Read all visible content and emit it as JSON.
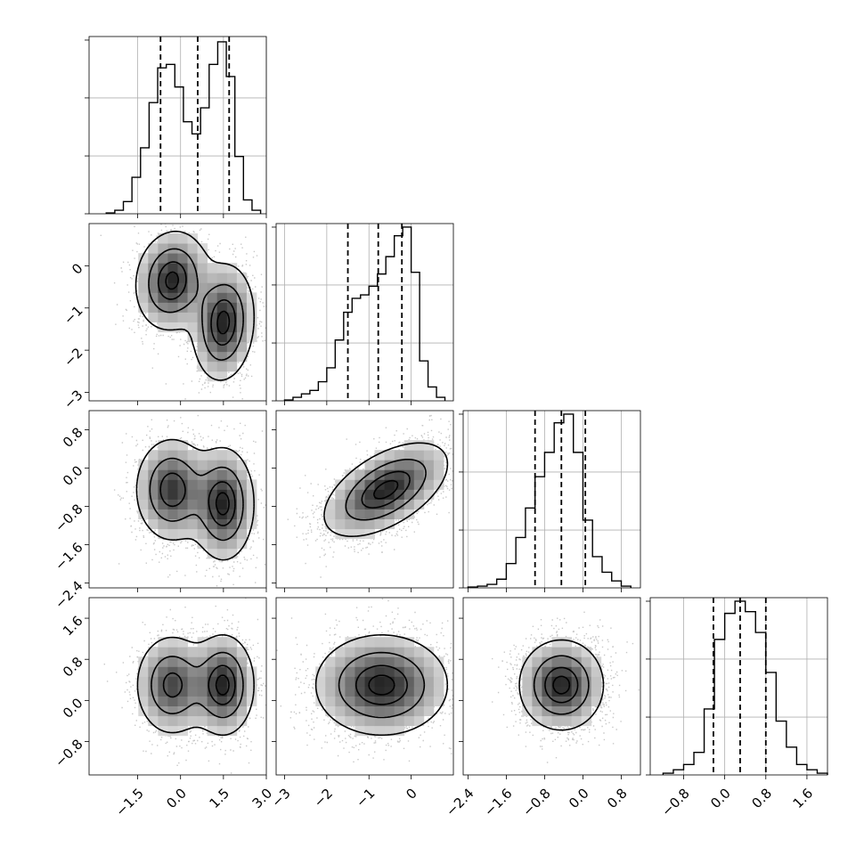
{
  "chart_data": {
    "type": "corner",
    "parameters": [
      "",
      "",
      "",
      ""
    ],
    "ranges": [
      [
        -3.2,
        3.0
      ],
      [
        -3.2,
        1.0
      ],
      [
        -2.5,
        1.2
      ],
      [
        -1.45,
        2.0
      ]
    ],
    "ticks": [
      {
        "values": [
          -1.5,
          0.0,
          1.5,
          3.0
        ],
        "labels": [
          "−1.5",
          "0.0",
          "1.5",
          "3.0"
        ]
      },
      {
        "values": [
          -3,
          -2,
          -1,
          0
        ],
        "labels": [
          "−3",
          "−2",
          "−1",
          "0"
        ]
      },
      {
        "values": [
          -2.4,
          -1.6,
          -0.8,
          0.0,
          0.8
        ],
        "labels": [
          "−2.4",
          "−1.6",
          "−0.8",
          "0.0",
          "0.8"
        ]
      },
      {
        "values": [
          -0.8,
          0.0,
          0.8,
          1.6
        ],
        "labels": [
          "−0.8",
          "0.0",
          "0.8",
          "1.6"
        ]
      }
    ],
    "quantiles": [
      [
        -0.7,
        0.6,
        1.7
      ],
      [
        -1.5,
        -0.78,
        -0.22
      ],
      [
        -1.0,
        -0.45,
        0.05
      ],
      [
        -0.22,
        0.3,
        0.8
      ]
    ],
    "histograms": [
      {
        "bin_edges": [
          -2.6,
          -2.3,
          -2.0,
          -1.7,
          -1.4,
          -1.1,
          -0.8,
          -0.5,
          -0.2,
          0.1,
          0.4,
          0.7,
          1.0,
          1.3,
          1.6,
          1.9,
          2.2,
          2.5,
          2.8
        ],
        "counts": [
          0.005,
          0.02,
          0.07,
          0.21,
          0.38,
          0.64,
          0.84,
          0.86,
          0.73,
          0.53,
          0.46,
          0.61,
          0.86,
          0.99,
          0.79,
          0.33,
          0.08,
          0.02
        ]
      },
      {
        "bin_edges": [
          -3.0,
          -2.8,
          -2.6,
          -2.4,
          -2.2,
          -2.0,
          -1.8,
          -1.6,
          -1.4,
          -1.2,
          -1.0,
          -0.8,
          -0.6,
          -0.4,
          -0.2,
          0.0,
          0.2,
          0.4,
          0.6,
          0.8
        ],
        "counts": [
          0.005,
          0.02,
          0.04,
          0.06,
          0.11,
          0.19,
          0.35,
          0.51,
          0.59,
          0.61,
          0.66,
          0.73,
          0.83,
          0.95,
          1.0,
          0.74,
          0.23,
          0.08,
          0.02
        ]
      },
      {
        "bin_edges": [
          -2.4,
          -2.2,
          -2.0,
          -1.8,
          -1.6,
          -1.4,
          -1.2,
          -1.0,
          -0.8,
          -0.6,
          -0.4,
          -0.2,
          0.0,
          0.2,
          0.4,
          0.6,
          0.8,
          1.0
        ],
        "counts": [
          0.005,
          0.01,
          0.02,
          0.05,
          0.14,
          0.29,
          0.46,
          0.64,
          0.78,
          0.95,
          1.0,
          0.78,
          0.39,
          0.18,
          0.09,
          0.04,
          0.01
        ]
      },
      {
        "bin_edges": [
          -1.2,
          -1.0,
          -0.8,
          -0.6,
          -0.4,
          -0.2,
          0.0,
          0.2,
          0.4,
          0.6,
          0.8,
          1.0,
          1.2,
          1.4,
          1.6,
          1.8,
          2.0
        ],
        "counts": [
          0.01,
          0.03,
          0.06,
          0.13,
          0.38,
          0.78,
          0.93,
          1.0,
          0.94,
          0.82,
          0.59,
          0.31,
          0.16,
          0.06,
          0.03,
          0.01
        ]
      }
    ],
    "clusters": {
      "0-1": [
        {
          "mean": [
            -0.3,
            -0.35
          ],
          "sd": [
            0.65,
            0.6
          ],
          "rho": 0.1,
          "w": 0.5
        },
        {
          "mean": [
            1.5,
            -1.35
          ],
          "sd": [
            0.55,
            0.7
          ],
          "rho": 0.1,
          "w": 0.5
        }
      ],
      "0-2": [
        {
          "mean": [
            -0.3,
            -0.45
          ],
          "sd": [
            0.65,
            0.55
          ],
          "rho": 0.0,
          "w": 0.5
        },
        {
          "mean": [
            1.5,
            -0.75
          ],
          "sd": [
            0.55,
            0.6
          ],
          "rho": 0.0,
          "w": 0.5
        }
      ],
      "0-3": [
        {
          "mean": [
            -0.3,
            0.3
          ],
          "sd": [
            0.65,
            0.5
          ],
          "rho": 0.0,
          "w": 0.5
        },
        {
          "mean": [
            1.5,
            0.3
          ],
          "sd": [
            0.55,
            0.5
          ],
          "rho": 0.0,
          "w": 0.5
        }
      ],
      "1-2": [
        {
          "mean": [
            -0.6,
            -0.45
          ],
          "sd": [
            0.75,
            0.5
          ],
          "rho": 0.55,
          "w": 1.0
        }
      ],
      "1-3": [
        {
          "mean": [
            -0.7,
            0.3
          ],
          "sd": [
            0.8,
            0.5
          ],
          "rho": 0.0,
          "w": 1.0
        }
      ],
      "2-3": [
        {
          "mean": [
            -0.45,
            0.3
          ],
          "sd": [
            0.45,
            0.45
          ],
          "rho": 0.0,
          "w": 1.0
        }
      ]
    },
    "contour_levels": [
      0.15,
      0.45,
      0.75,
      0.93
    ]
  }
}
